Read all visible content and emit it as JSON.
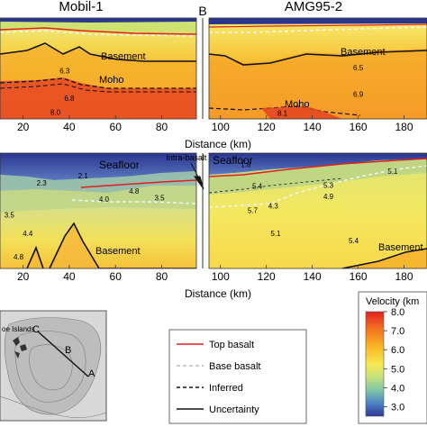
{
  "titles": {
    "left": "Mobil-1",
    "right": "AMG95-2",
    "divider": "B"
  },
  "axis": {
    "xlabel": "Distance (km)"
  },
  "chart_data": [
    {
      "type": "heatmap",
      "panel": "top-left",
      "xlim": [
        10,
        95
      ],
      "xticks": [
        20,
        40,
        60,
        80
      ],
      "labels": {
        "basement": "Basement",
        "moho": "Moho"
      },
      "velocities": [
        {
          "x": 38,
          "z": 0.55,
          "value": "6.3"
        },
        {
          "x": 40,
          "z": 0.82,
          "value": "6.8"
        },
        {
          "x": 34,
          "z": 0.96,
          "value": "8.0"
        }
      ]
    },
    {
      "type": "heatmap",
      "panel": "top-right",
      "xlim": [
        95,
        190
      ],
      "xticks": [
        100,
        120,
        140,
        160,
        180
      ],
      "labels": {
        "basement": "Basement",
        "moho": "Moho"
      },
      "velocities": [
        {
          "x": 160,
          "z": 0.52,
          "value": "6.5"
        },
        {
          "x": 160,
          "z": 0.78,
          "value": "6.9"
        },
        {
          "x": 127,
          "z": 0.97,
          "value": "8.1"
        }
      ]
    },
    {
      "type": "heatmap",
      "panel": "bottom-left",
      "xlim": [
        10,
        95
      ],
      "xticks": [
        20,
        40,
        60,
        80
      ],
      "labels": {
        "seafloor": "Seafloor",
        "basement": "Basement",
        "lvz": "Intra-basalt LVZ"
      },
      "velocities": [
        {
          "x": 46,
          "z": 0.22,
          "value": "2.1"
        },
        {
          "x": 28,
          "z": 0.28,
          "value": "2.3"
        },
        {
          "x": 68,
          "z": 0.35,
          "value": "4.8"
        },
        {
          "x": 55,
          "z": 0.42,
          "value": "4.0"
        },
        {
          "x": 79,
          "z": 0.41,
          "value": "3.5"
        },
        {
          "x": 14,
          "z": 0.56,
          "value": "3.5"
        },
        {
          "x": 22,
          "z": 0.72,
          "value": "4.4"
        },
        {
          "x": 18,
          "z": 0.92,
          "value": "4.8"
        }
      ]
    },
    {
      "type": "heatmap",
      "panel": "bottom-right",
      "xlim": [
        95,
        190
      ],
      "xticks": [
        100,
        120,
        140,
        160,
        180
      ],
      "labels": {
        "seafloor": "Seafloor",
        "basement": "Basement"
      },
      "velocities": [
        {
          "x": 111,
          "z": 0.12,
          "value": "1.8"
        },
        {
          "x": 175,
          "z": 0.18,
          "value": "5.1"
        },
        {
          "x": 116,
          "z": 0.31,
          "value": "5.4"
        },
        {
          "x": 147,
          "z": 0.3,
          "value": "5.3"
        },
        {
          "x": 147,
          "z": 0.4,
          "value": "4.9"
        },
        {
          "x": 114,
          "z": 0.52,
          "value": "5.7"
        },
        {
          "x": 123,
          "z": 0.48,
          "value": "4.3"
        },
        {
          "x": 124,
          "z": 0.72,
          "value": "5.1"
        },
        {
          "x": 158,
          "z": 0.78,
          "value": "5.4"
        }
      ]
    }
  ],
  "map": {
    "labels": [
      "A",
      "B",
      "C"
    ],
    "place": "oe Islands"
  },
  "legend": [
    {
      "label": "Top basalt",
      "color": "#e02020",
      "style": "solid"
    },
    {
      "label": "Base basalt",
      "color": "#cccccc",
      "style": "dashed"
    },
    {
      "label": "Inferred",
      "color": "#111111",
      "style": "dashed"
    },
    {
      "label": "Uncertainty",
      "color": "#111111",
      "style": "solid"
    }
  ],
  "colorbar": {
    "title": "Velocity (km",
    "min": 2.5,
    "max": 8.0,
    "ticks": [
      "8.0",
      "7.0",
      "6.0",
      "5.0",
      "4.0",
      "3.0"
    ],
    "tick_values": [
      8.0,
      7.0,
      6.0,
      5.0,
      4.0,
      3.0
    ],
    "colors": [
      "#e02222",
      "#f26b20",
      "#f8b424",
      "#f8e850",
      "#c8e07a",
      "#7fc7a8",
      "#4b7fc4",
      "#303898"
    ]
  }
}
